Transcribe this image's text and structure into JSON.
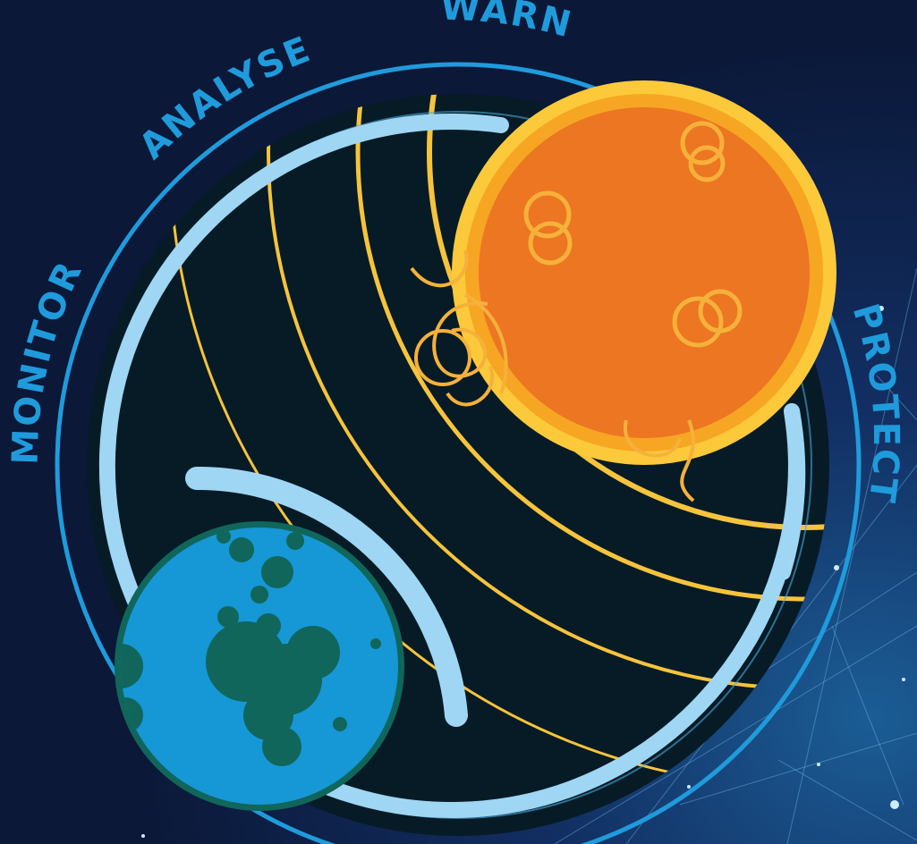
{
  "labels": {
    "monitor": "MONITOR",
    "analyse": "ANALYSE",
    "warn": "WARN",
    "protect": "PROTECT"
  },
  "icons": {
    "sun": "sun-icon",
    "earth": "earth-icon",
    "field": "magnetic-field-lines"
  },
  "colors": {
    "background": "#0b1838",
    "ring": "#1f9bdc",
    "label": "#1f9bdc",
    "disc": "#061b26",
    "shield": "#9fd6f3",
    "fieldLine": "#f6c33d",
    "sunOuter": "#fcc93a",
    "sunMid": "#f6a623",
    "sunCore": "#ec7622",
    "earthOcean": "#1697d6",
    "earthLand": "#10665a"
  }
}
